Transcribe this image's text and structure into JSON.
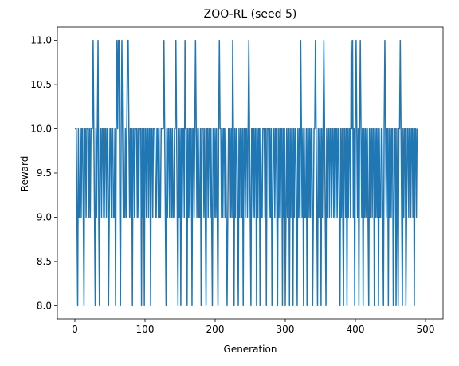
{
  "chart_data": {
    "type": "line",
    "title": "ZOO-RL (seed 5)",
    "xlabel": "Generation",
    "ylabel": "Reward",
    "xlim": [
      -25,
      525
    ],
    "ylim": [
      7.85,
      11.15
    ],
    "xticks": [
      0,
      100,
      200,
      300,
      400,
      500
    ],
    "yticks": [
      8.0,
      8.5,
      9.0,
      9.5,
      10.0,
      10.5,
      11.0
    ],
    "ytick_labels": [
      "8.0",
      "8.5",
      "9.0",
      "9.5",
      "10.0",
      "10.5",
      "11.0"
    ],
    "grid": false,
    "series": [
      {
        "color": "#1f77b4",
        "x_start": 0,
        "x_step": 1,
        "values": [
          10,
          10,
          10,
          9,
          8,
          10,
          9,
          9,
          10,
          9,
          10,
          10,
          9,
          8,
          10,
          10,
          9,
          10,
          10,
          10,
          9,
          10,
          9,
          10,
          10,
          10,
          11,
          10,
          9,
          8,
          10,
          9,
          10,
          11,
          9,
          8,
          10,
          10,
          9,
          10,
          10,
          9,
          9,
          10,
          10,
          9,
          10,
          10,
          8,
          9,
          10,
          10,
          9,
          10,
          10,
          9,
          9,
          10,
          8,
          10,
          11,
          10,
          11,
          11,
          9,
          8,
          10,
          11,
          10,
          9,
          9,
          9,
          10,
          9,
          10,
          11,
          11,
          10,
          9,
          10,
          9,
          10,
          8,
          10,
          10,
          9,
          10,
          10,
          10,
          9,
          10,
          9,
          10,
          10,
          10,
          8,
          10,
          9,
          10,
          8,
          10,
          10,
          9,
          10,
          10,
          9,
          10,
          10,
          8,
          10,
          10,
          9,
          10,
          10,
          10,
          9,
          9,
          10,
          10,
          9,
          10,
          9,
          9,
          10,
          10,
          10,
          10,
          11,
          10,
          9,
          8,
          10,
          9,
          10,
          10,
          9,
          10,
          10,
          9,
          10,
          9,
          9,
          10,
          10,
          11,
          10,
          9,
          8,
          10,
          9,
          10,
          8,
          10,
          9,
          10,
          10,
          9,
          11,
          10,
          10,
          8,
          10,
          9,
          10,
          9,
          10,
          10,
          8,
          10,
          10,
          9,
          10,
          11,
          10,
          9,
          10,
          10,
          9,
          9,
          10,
          8,
          10,
          10,
          10,
          9,
          10,
          9,
          8,
          10,
          10,
          9,
          10,
          10,
          9,
          10,
          9,
          8,
          10,
          10,
          9,
          10,
          9,
          10,
          9,
          8,
          10,
          11,
          10,
          10,
          9,
          10,
          9,
          10,
          10,
          9,
          10,
          9,
          8,
          9,
          10,
          10,
          10,
          9,
          10,
          9,
          11,
          10,
          8,
          10,
          9,
          10,
          10,
          9,
          8,
          10,
          9,
          10,
          10,
          9,
          10,
          8,
          10,
          10,
          9,
          10,
          10,
          9,
          10,
          11,
          10,
          9,
          8,
          10,
          10,
          9,
          10,
          9,
          10,
          10,
          8,
          10,
          9,
          10,
          10,
          8,
          10,
          9,
          9,
          10,
          10,
          10,
          9,
          10,
          8,
          10,
          10,
          10,
          9,
          10,
          9,
          10,
          8,
          9,
          10,
          10,
          9,
          10,
          10,
          9,
          8,
          10,
          9,
          10,
          9,
          10,
          10,
          8,
          10,
          9,
          10,
          8,
          9,
          10,
          9,
          10,
          10,
          8,
          10,
          9,
          10,
          10,
          8,
          10,
          9,
          10,
          10,
          9,
          8,
          10,
          9,
          10,
          9,
          11,
          10,
          9,
          10,
          8,
          10,
          9,
          9,
          10,
          8,
          10,
          10,
          9,
          10,
          9,
          10,
          10,
          8,
          9,
          10,
          10,
          11,
          10,
          9,
          8,
          10,
          9,
          10,
          10,
          8,
          10,
          9,
          10,
          11,
          10,
          9,
          8,
          10,
          9,
          10,
          10,
          9,
          10,
          10,
          9,
          10,
          10,
          9,
          10,
          9,
          10,
          10,
          9,
          10,
          10,
          9,
          8,
          10,
          9,
          10,
          9,
          8,
          10,
          10,
          9,
          10,
          8,
          10,
          9,
          10,
          10,
          9,
          11,
          10,
          11,
          9,
          10,
          8,
          10,
          11,
          10,
          9,
          10,
          8,
          10,
          11,
          10,
          9,
          10,
          8,
          10,
          9,
          10,
          9,
          10,
          10,
          9,
          8,
          10,
          9,
          10,
          10,
          9,
          10,
          10,
          8,
          10,
          9,
          10,
          9,
          10,
          8,
          10,
          9,
          9,
          10,
          10,
          9,
          8,
          10,
          11,
          10,
          9,
          10,
          10,
          8,
          10,
          9,
          10,
          9,
          10,
          10,
          8,
          9,
          10,
          10,
          8,
          10,
          9,
          8,
          10,
          10,
          11,
          10,
          9,
          8,
          10,
          9,
          10,
          10,
          8,
          9,
          10,
          10,
          9,
          10,
          10,
          9,
          10,
          10,
          9,
          10,
          8,
          10,
          10,
          9,
          10
        ]
      }
    ]
  }
}
